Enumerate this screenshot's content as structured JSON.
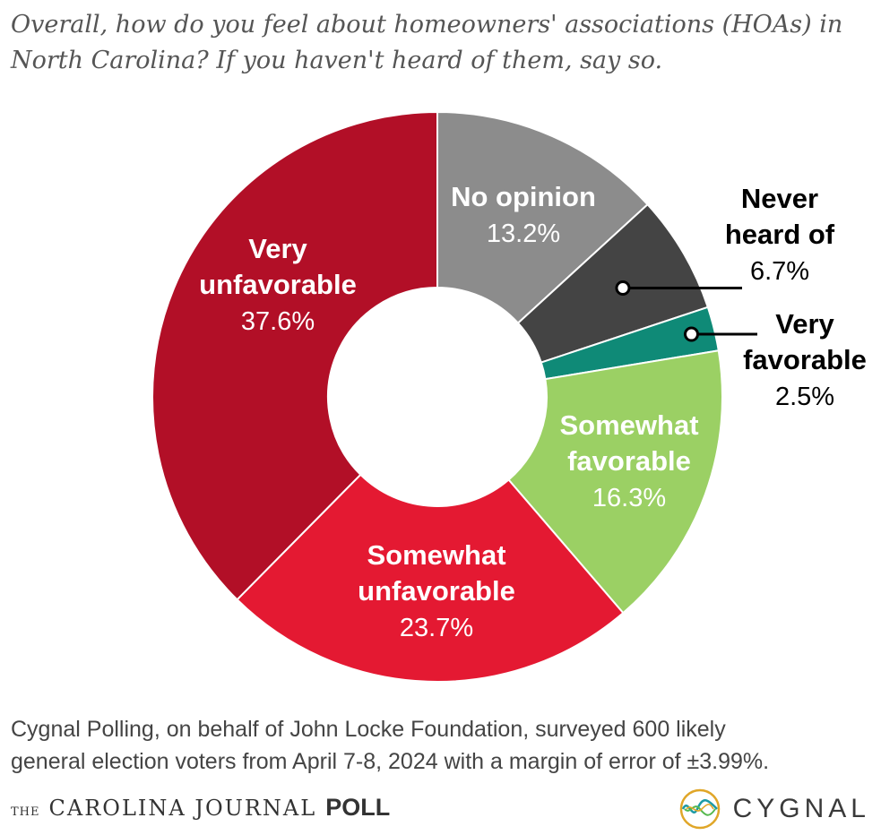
{
  "title": "Overall, how do you feel about homeowners' associations (HOAs) in North Carolina? If you haven't heard of them, say so.",
  "chart_data": {
    "type": "pie",
    "donut": true,
    "slices": [
      {
        "label_lines": [
          "No opinion"
        ],
        "value": 13.2,
        "value_text": "13.2%",
        "color": "#8c8c8c"
      },
      {
        "label_lines": [
          "Never",
          "heard of"
        ],
        "value": 6.7,
        "value_text": "6.7%",
        "color": "#444444"
      },
      {
        "label_lines": [
          "Very",
          "favorable"
        ],
        "value": 2.5,
        "value_text": "2.5%",
        "color": "#0f8a77"
      },
      {
        "label_lines": [
          "Somewhat",
          "favorable"
        ],
        "value": 16.3,
        "value_text": "16.3%",
        "color": "#9bd064"
      },
      {
        "label_lines": [
          "Somewhat",
          "unfavorable"
        ],
        "value": 23.7,
        "value_text": "23.7%",
        "color": "#e41932"
      },
      {
        "label_lines": [
          "Very",
          "unfavorable"
        ],
        "value": 37.6,
        "value_text": "37.6%",
        "color": "#b20f27"
      }
    ]
  },
  "footnote": {
    "line1": "Cygnal Polling, on behalf of John Locke Foundation, surveyed 600 likely",
    "line2": "general election voters from April 7-8, 2024 with a margin of error of ±3.99%."
  },
  "branding": {
    "the": "THE",
    "name": "CAROLINA JOURNAL",
    "poll": "POLL",
    "cygnal": "CYGNAL"
  }
}
